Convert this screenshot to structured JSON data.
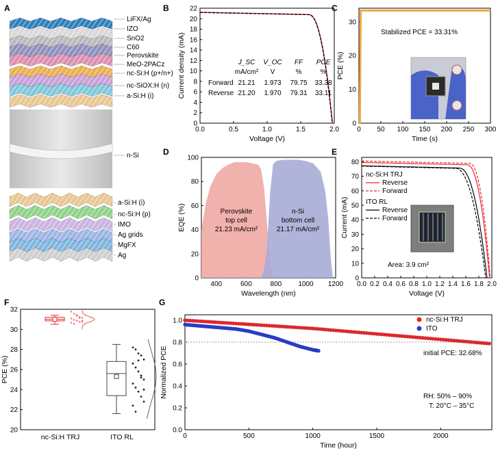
{
  "panels": {
    "A": {
      "label": "A",
      "layers": [
        "LiFX/Ag",
        "IZO",
        "SnO2",
        "C60",
        "Perovskite",
        "MeO-2PACz",
        "nc-Si:H (p+/n+)",
        "nc-SiOX:H (n)",
        "a-Si:H (i)",
        "n-Si",
        "a-Si:H (i)",
        "nc-Si:H (p)",
        "IMO",
        "Ag grids",
        "MgFX",
        "Ag"
      ]
    },
    "B": {
      "label": "B"
    },
    "C": {
      "label": "C",
      "stabilized_text": "Stabilized PCE = 33.31%"
    },
    "D": {
      "label": "D",
      "region1": [
        "Perovskite",
        "top cell",
        "21.23 mA/cm²"
      ],
      "region2": [
        "n-Si",
        "bottom cell",
        "21.17 mA/cm²"
      ]
    },
    "E": {
      "label": "E",
      "area_text": "Area: 3.9 cm²"
    },
    "F": {
      "label": "F"
    },
    "G": {
      "label": "G",
      "initial_text": "initial PCE: 32.68%",
      "rh_text": "RH: 50% – 90%",
      "t_text": "T: 20°C – 35°C"
    }
  },
  "chart_data": [
    {
      "panel": "B",
      "type": "line",
      "xlabel": "Voltage (V)",
      "ylabel": "Current density (mA)",
      "xlim": [
        0,
        2.0
      ],
      "ylim": [
        0,
        22
      ],
      "xticks": [
        0.0,
        0.5,
        1.0,
        1.5,
        2.0
      ],
      "yticks": [
        0,
        2,
        4,
        6,
        8,
        10,
        12,
        14,
        16,
        18,
        20,
        22
      ],
      "table": {
        "headers": [
          "J_SC",
          "V_OC",
          "FF",
          "PCE"
        ],
        "units": [
          "mA/cm²",
          "V",
          "%",
          "%"
        ],
        "rows": [
          {
            "name": "Forward",
            "values": [
              "21.21",
              "1.973",
              "79.75",
              "33.38"
            ],
            "color": "#e8262c"
          },
          {
            "name": "Reverse",
            "values": [
              "21.20",
              "1.970",
              "79.31",
              "33.11"
            ],
            "color": "#000000"
          }
        ]
      },
      "series": [
        {
          "name": "Forward",
          "jsc": 21.21,
          "voc": 1.973,
          "color": "#e8262c",
          "dash": false
        },
        {
          "name": "Reverse",
          "jsc": 21.2,
          "voc": 1.97,
          "color": "#000000",
          "dash": true
        }
      ]
    },
    {
      "panel": "C",
      "type": "line",
      "xlabel": "Time (s)",
      "ylabel": "PCE (%)",
      "xlim": [
        0,
        300
      ],
      "ylim": [
        0,
        34
      ],
      "xticks": [
        0,
        50,
        100,
        150,
        200,
        250,
        300
      ],
      "yticks": [
        0,
        10,
        20,
        30
      ],
      "series": [
        {
          "name": "PCE",
          "x": [
            0,
            2,
            4,
            300
          ],
          "y": [
            0,
            0,
            33.31,
            33.31
          ],
          "color": "#f2a93b"
        }
      ]
    },
    {
      "panel": "D",
      "type": "area",
      "xlabel": "Wavelength (nm)",
      "ylabel": "EQE (%)",
      "xlim": [
        300,
        1200
      ],
      "ylim": [
        0,
        100
      ],
      "xticks": [
        400,
        600,
        800,
        1000,
        1200
      ],
      "yticks": [
        0,
        20,
        40,
        60,
        80,
        100
      ],
      "series": [
        {
          "name": "Perovskite top cell",
          "x": [
            300,
            330,
            360,
            400,
            440,
            480,
            520,
            560,
            600,
            640,
            680,
            700,
            720,
            740,
            760,
            780
          ],
          "y": [
            40,
            62,
            76,
            86,
            91,
            94,
            96,
            96,
            96,
            95,
            94,
            90,
            75,
            45,
            15,
            0
          ],
          "color": "#f0a8a4"
        },
        {
          "name": "n-Si bottom cell",
          "x": [
            700,
            720,
            740,
            760,
            780,
            800,
            850,
            900,
            950,
            1000,
            1050,
            1100,
            1130,
            1150,
            1160,
            1170,
            1180
          ],
          "y": [
            0,
            6,
            25,
            70,
            94,
            97,
            98,
            98,
            98,
            97,
            95,
            88,
            72,
            50,
            30,
            12,
            2
          ],
          "color": "#a8acd6"
        }
      ]
    },
    {
      "panel": "E",
      "type": "line",
      "xlabel": "Voltage (V)",
      "ylabel": "Current (mA)",
      "xlim": [
        0,
        2.0
      ],
      "ylim": [
        0,
        83
      ],
      "xticks": [
        0.0,
        0.2,
        0.4,
        0.6,
        0.8,
        1.0,
        1.2,
        1.4,
        1.6,
        1.8,
        2.0
      ],
      "yticks": [
        0,
        10,
        20,
        30,
        40,
        50,
        60,
        70,
        80
      ],
      "legend": {
        "group1": "nc-Si:H TRJ",
        "group2": "ITO RL",
        "reverse": "Reverse",
        "forward": "Forward"
      },
      "series": [
        {
          "name": "nc-Si:H TRJ Reverse",
          "isc": 79.5,
          "voc": 1.965,
          "knee": 1.62,
          "color": "#e8262c",
          "dash": false
        },
        {
          "name": "nc-Si:H TRJ Forward",
          "isc": 80.5,
          "voc": 1.975,
          "knee": 1.66,
          "color": "#e8262c",
          "dash": true
        },
        {
          "name": "ITO RL Reverse",
          "isc": 77.2,
          "voc": 1.925,
          "knee": 1.5,
          "color": "#000000",
          "dash": false
        },
        {
          "name": "ITO RL Forward",
          "isc": 77.0,
          "voc": 1.905,
          "knee": 1.44,
          "color": "#000000",
          "dash": true
        }
      ]
    },
    {
      "panel": "F",
      "type": "box",
      "ylabel": "PCE (%)",
      "ylim": [
        20,
        32
      ],
      "yticks": [
        20,
        22,
        24,
        26,
        28,
        30,
        32
      ],
      "categories": [
        "nc-Si:H TRJ",
        "ITO RL"
      ],
      "boxes": [
        {
          "name": "nc-Si:H TRJ",
          "min": 30.5,
          "q1": 30.85,
          "median": 31.0,
          "mean": 31.0,
          "q3": 31.2,
          "max": 31.4,
          "color": "#e8262c",
          "points": [
            31.8,
            31.6,
            31.4,
            31.3,
            31.2,
            31.1,
            31.0,
            30.9,
            30.8,
            30.8,
            30.7,
            30.6,
            31.5,
            31.2,
            30.9
          ]
        },
        {
          "name": "ITO RL",
          "min": 21.6,
          "q1": 23.4,
          "median": 25.6,
          "mean": 25.3,
          "q3": 26.8,
          "max": 28.5,
          "color": "#444444",
          "points": [
            28.2,
            28.0,
            27.6,
            27.4,
            27.0,
            26.6,
            26.2,
            25.8,
            25.4,
            25.0,
            24.6,
            24.2,
            23.8,
            23.3,
            22.8,
            22.4,
            21.8,
            26.9,
            25.2,
            24.0
          ]
        }
      ]
    },
    {
      "panel": "G",
      "type": "scatter",
      "xlabel": "Time (hour)",
      "ylabel": "Normalized PCE",
      "xlim": [
        0,
        2400
      ],
      "ylim": [
        0,
        1.05
      ],
      "xticks": [
        0,
        500,
        1000,
        1500,
        2000
      ],
      "yticks": [
        0.0,
        0.2,
        0.4,
        0.6,
        0.8,
        1.0
      ],
      "reference_y": 0.8,
      "series": [
        {
          "name": "nc-Si:H TRJ",
          "color": "#e8262c",
          "x": [
            0,
            200,
            400,
            600,
            800,
            1000,
            1200,
            1400,
            1600,
            1800,
            2000,
            2200,
            2400
          ],
          "y": [
            1.0,
            0.985,
            0.97,
            0.955,
            0.94,
            0.925,
            0.905,
            0.885,
            0.865,
            0.845,
            0.825,
            0.805,
            0.785
          ]
        },
        {
          "name": "ITO",
          "color": "#2a3fd6",
          "x": [
            0,
            100,
            200,
            300,
            400,
            500,
            600,
            700,
            800,
            900,
            1000,
            1050
          ],
          "y": [
            0.96,
            0.95,
            0.94,
            0.93,
            0.92,
            0.9,
            0.87,
            0.84,
            0.8,
            0.76,
            0.73,
            0.72
          ]
        }
      ]
    }
  ]
}
